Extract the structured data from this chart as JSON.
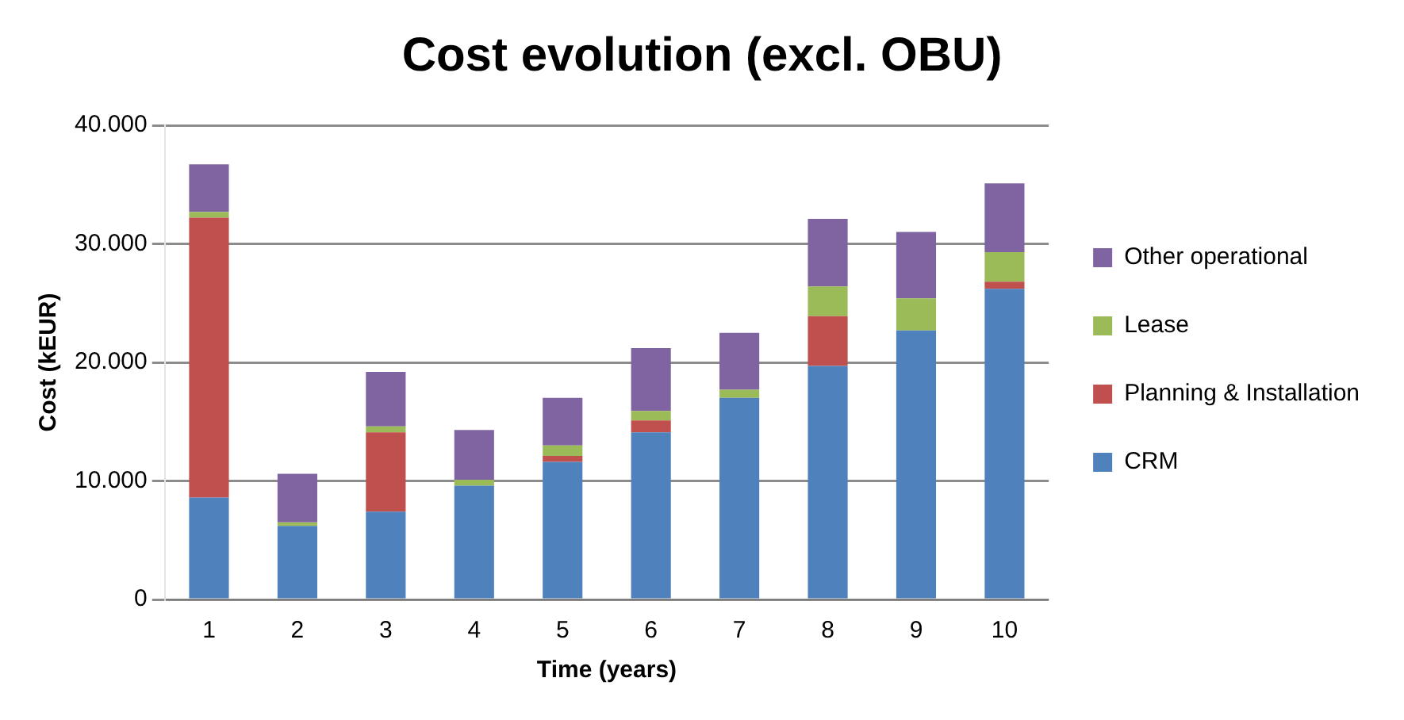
{
  "chart_data": {
    "type": "bar",
    "title": "Cost evolution (excl. OBU)",
    "xlabel": "Time (years)",
    "ylabel": "Cost (kEUR)",
    "categories": [
      "1",
      "2",
      "3",
      "4",
      "5",
      "6",
      "7",
      "8",
      "9",
      "10"
    ],
    "stacked": true,
    "series": [
      {
        "name": "CRM",
        "color": "#4f81bd",
        "values": [
          8600,
          6200,
          7400,
          9600,
          11600,
          14100,
          17000,
          19700,
          22700,
          26200
        ]
      },
      {
        "name": "Planning & Installation",
        "color": "#c0504d",
        "values": [
          23600,
          0,
          6700,
          0,
          500,
          1000,
          0,
          4200,
          0,
          600
        ]
      },
      {
        "name": "Lease",
        "color": "#9bbb59",
        "values": [
          500,
          300,
          500,
          500,
          900,
          800,
          700,
          2500,
          2700,
          2500
        ]
      },
      {
        "name": "Other operational",
        "color": "#8064a2",
        "values": [
          4000,
          4100,
          4600,
          4200,
          4000,
          5300,
          4800,
          5700,
          5600,
          5800
        ]
      }
    ],
    "ylim": [
      0,
      40000
    ],
    "yticks": [
      0,
      {
        "value": 10000,
        "label": "10.000"
      },
      {
        "value": 20000,
        "label": "20.000"
      },
      {
        "value": 30000,
        "label": "30.000"
      },
      {
        "value": 40000,
        "label": "40.000"
      }
    ],
    "grid": "y",
    "legend": "right"
  }
}
